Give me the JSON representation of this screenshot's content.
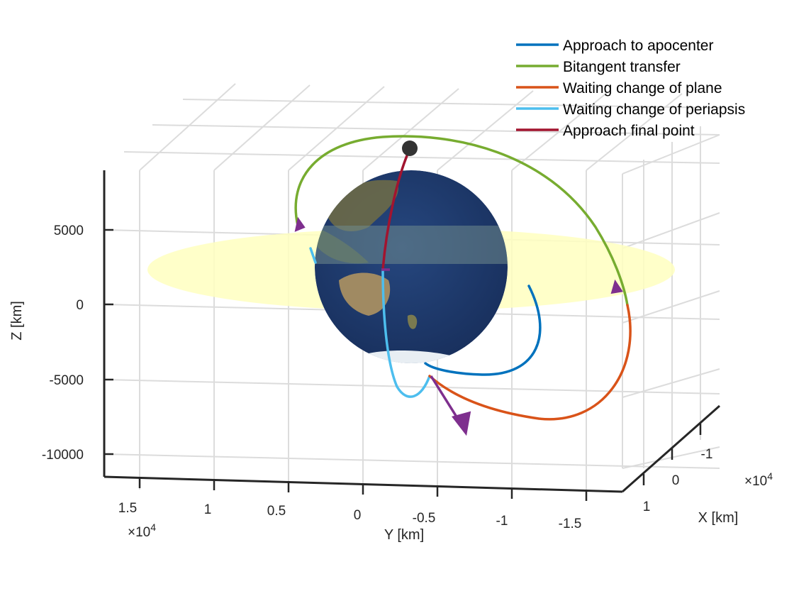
{
  "chart_data": {
    "type": "line",
    "view": "3d",
    "grid": true,
    "legend_position": "top-right",
    "title": "",
    "xlabel": "X [km]",
    "ylabel": "Y [km]",
    "zlabel": "Z [km]",
    "x_ticks": [
      "-1",
      "0",
      "1"
    ],
    "x_exponent": "×10",
    "x_exponent_power": "4",
    "y_ticks": [
      "1.5",
      "1",
      "0.5",
      "0",
      "-0.5",
      "-1",
      "-1.5"
    ],
    "y_exponent": "×10",
    "y_exponent_power": "4",
    "z_ticks": [
      "5000",
      "0",
      "-5000",
      "-10000"
    ],
    "z_tick_values": [
      5000,
      0,
      -5000,
      -10000
    ],
    "ylim": [
      -17000,
      18000
    ],
    "zlim": [
      -11500,
      9000
    ],
    "colors": {
      "approach_apocenter": "#0072BD",
      "bitangent_transfer": "#77AC30",
      "waiting_plane": "#D95319",
      "waiting_periapsis": "#4DBEEE",
      "approach_final": "#A2142F",
      "maneuver_arrows": "#7E2F8E",
      "equatorial_plane": "#FFFFC0",
      "earth_ocean": "#1F3A6E",
      "earth_land": "#8C7A55",
      "final_point": "#333333"
    },
    "series": [
      {
        "name": "Approach to apocenter",
        "color": "#0072BD"
      },
      {
        "name": "Bitangent transfer",
        "color": "#77AC30"
      },
      {
        "name": "Waiting change of plane",
        "color": "#D95319"
      },
      {
        "name": "Waiting change of periapsis",
        "color": "#4DBEEE"
      },
      {
        "name": "Approach final point",
        "color": "#A2142F"
      }
    ]
  }
}
